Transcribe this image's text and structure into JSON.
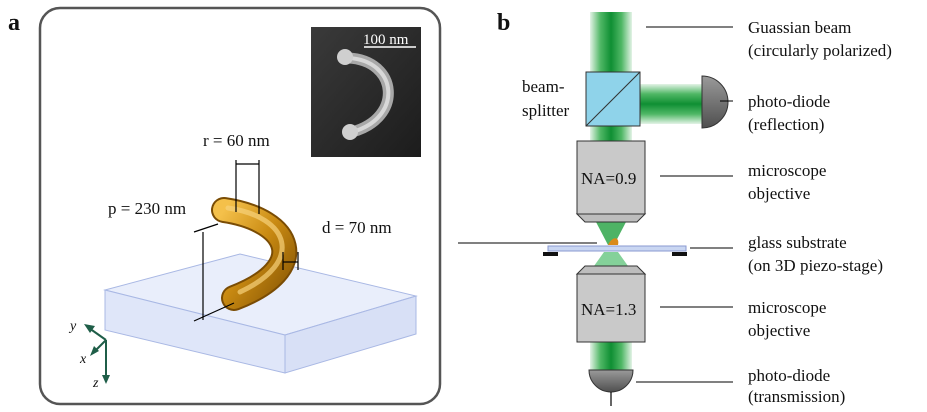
{
  "panel_a": {
    "letter": "a",
    "scale_bar": "100 nm",
    "dim_r": "r = 60 nm",
    "dim_p": "p = 230 nm",
    "dim_d": "d = 70 nm",
    "axes": {
      "y": "y",
      "x": "x",
      "z": "z"
    }
  },
  "panel_b": {
    "letter": "b",
    "beamsplitter_line1": "beam-",
    "beamsplitter_line2": "splitter",
    "objective_top": "NA=0.9",
    "objective_bottom": "NA=1.3",
    "labels": {
      "beam_l1": "Guassian beam",
      "beam_l2": "(circularly polarized)",
      "refl_l1": "photo-diode",
      "refl_l2": "(reflection)",
      "obj1_l1": "microscope",
      "obj1_l2": "objective",
      "glass_l1": "glass substrate",
      "glass_l2": "(on 3D piezo-stage)",
      "obj2_l1": "microscope",
      "obj2_l2": "objective",
      "trans_l1": "photo-diode",
      "trans_l2": "(transmission)"
    }
  },
  "colors": {
    "beam_green": "#1a9a3a",
    "beamsplitter": "#8fd3ea",
    "objective": "#c9c9c9",
    "gold": "#c98a12",
    "glass": "#c9d6f2",
    "photodiode": "#6d6d6d"
  }
}
